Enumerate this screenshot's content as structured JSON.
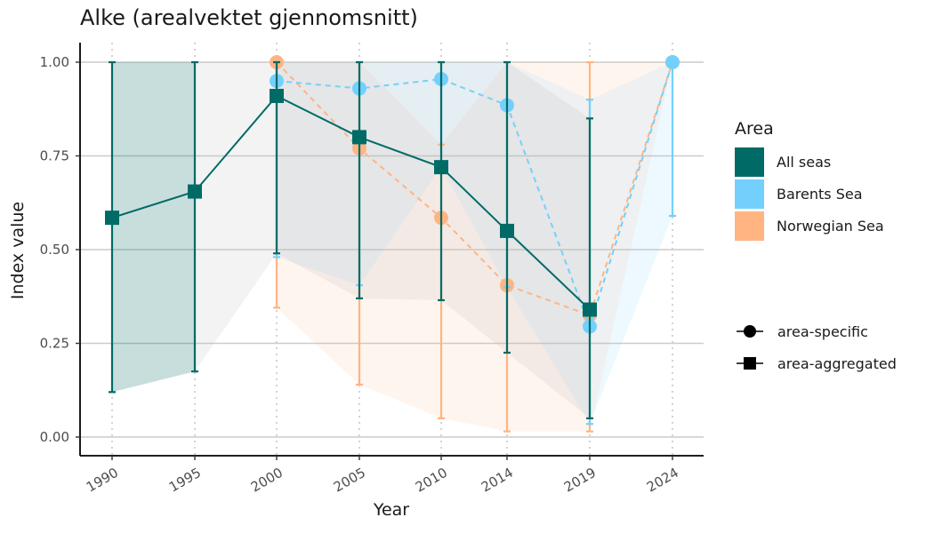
{
  "chart_data": {
    "type": "line",
    "title": "Alke (arealvektet gjennomsnitt)",
    "xlabel": "Year",
    "ylabel": "Index value",
    "categories": [
      "1990",
      "1995",
      "2000",
      "2005",
      "2010",
      "2014",
      "2019",
      "2024"
    ],
    "ylim": [
      0,
      1
    ],
    "yticks": [
      "0.00",
      "0.25",
      "0.50",
      "0.75",
      "1.00"
    ],
    "grid": "horizontal major",
    "legend_position": "right",
    "series": [
      {
        "name": "All seas",
        "kind": "area-aggregated",
        "marker": "square",
        "line": "solid",
        "color": "#006b66",
        "values": [
          0.585,
          0.655,
          0.91,
          0.8,
          0.72,
          0.55,
          0.34,
          null
        ],
        "lower": [
          0.12,
          0.175,
          0.49,
          0.37,
          0.365,
          0.225,
          0.05,
          null
        ],
        "upper": [
          1.0,
          1.0,
          1.0,
          1.0,
          1.0,
          1.0,
          0.85,
          null
        ]
      },
      {
        "name": "Barents Sea",
        "kind": "area-specific",
        "marker": "circle",
        "line": "dashed",
        "color": "#73d0fc",
        "values": [
          null,
          null,
          0.95,
          0.93,
          0.955,
          0.885,
          0.295,
          1.0
        ],
        "lower": [
          null,
          null,
          0.48,
          0.405,
          0.72,
          0.4,
          0.035,
          0.59
        ],
        "upper": [
          null,
          null,
          1.0,
          1.0,
          1.0,
          1.0,
          0.9,
          1.0
        ]
      },
      {
        "name": "Norwegian Sea",
        "kind": "area-specific",
        "marker": "circle",
        "line": "dashed",
        "color": "#ffb482",
        "values": [
          null,
          null,
          1.0,
          0.77,
          0.585,
          0.405,
          0.325,
          1.0
        ],
        "lower": [
          null,
          null,
          0.345,
          0.14,
          0.05,
          0.015,
          0.015,
          1.0
        ],
        "upper": [
          null,
          null,
          1.0,
          1.0,
          0.78,
          1.0,
          1.0,
          1.0
        ]
      }
    ]
  },
  "legend": {
    "title": "Area",
    "items": [
      {
        "label": "All seas",
        "color": "#006b66"
      },
      {
        "label": "Barents Sea",
        "color": "#73d0fc"
      },
      {
        "label": "Norwegian Sea",
        "color": "#ffb482"
      }
    ],
    "shapes": [
      {
        "label": "area-specific",
        "marker": "circle"
      },
      {
        "label": "area-aggregated",
        "marker": "square"
      }
    ]
  }
}
